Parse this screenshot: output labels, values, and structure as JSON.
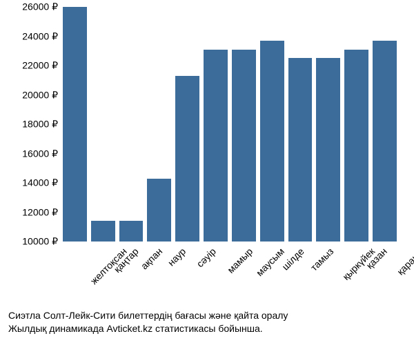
{
  "chart": {
    "type": "bar",
    "background_color": "#ffffff",
    "bar_color": "#3c6c99",
    "text_color": "#000000",
    "label_fontsize": 14,
    "caption_fontsize": 14,
    "ylim": [
      10000,
      26000
    ],
    "ytick_step": 2000,
    "currency_suffix": " ₽",
    "yticks": [
      {
        "value": 10000,
        "label": "10000 ₽"
      },
      {
        "value": 12000,
        "label": "12000 ₽"
      },
      {
        "value": 14000,
        "label": "14000 ₽"
      },
      {
        "value": 16000,
        "label": "16000 ₽"
      },
      {
        "value": 18000,
        "label": "18000 ₽"
      },
      {
        "value": 20000,
        "label": "20000 ₽"
      },
      {
        "value": 22000,
        "label": "22000 ₽"
      },
      {
        "value": 24000,
        "label": "24000 ₽"
      },
      {
        "value": 26000,
        "label": "26000 ₽"
      }
    ],
    "categories": [
      "желтоқсан",
      "қаңтар",
      "ақпан",
      "наур",
      "сәуір",
      "мамыр",
      "маусым",
      "шілде",
      "тамыз",
      "қыркүйек",
      "қазан",
      "қараша"
    ],
    "values": [
      26000,
      11400,
      11400,
      14300,
      21300,
      23100,
      23100,
      23700,
      22500,
      22500,
      23100,
      23700
    ],
    "bar_width": 0.82,
    "x_label_rotation_deg": 45
  },
  "caption": {
    "line1": "Сиэтла Солт-Лейк-Сити билеттердің бағасы және қайта оралу",
    "line2": "Жылдық динамикада Avticket.kz статистикасы бойынша."
  }
}
